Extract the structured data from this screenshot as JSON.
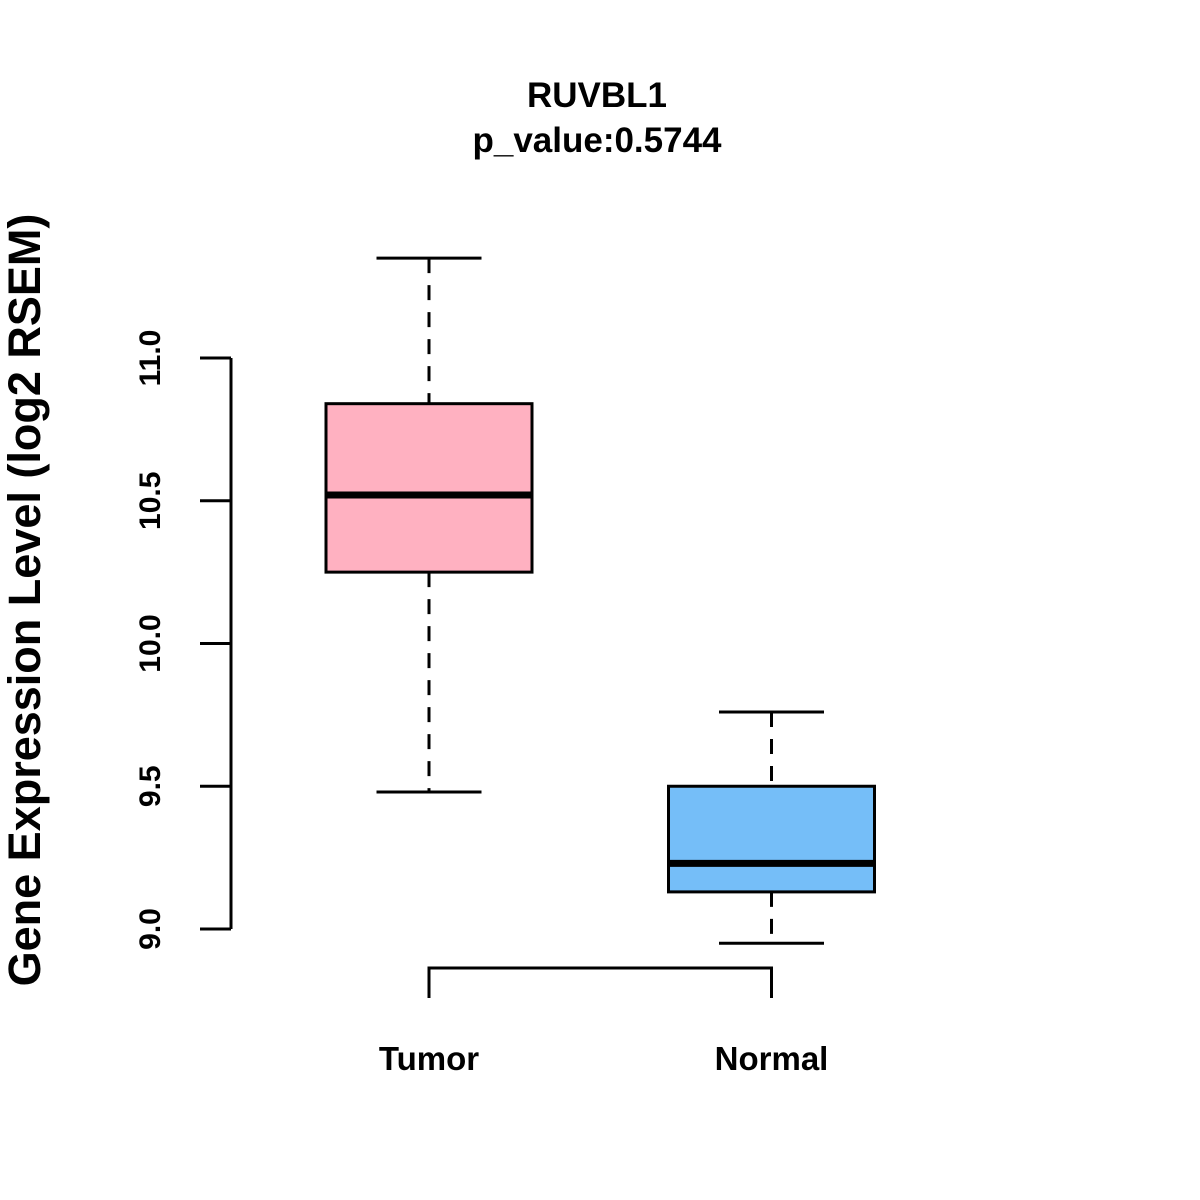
{
  "title": {
    "line1": "RUVBL1",
    "line2": "p_value:0.5744"
  },
  "y_axis": {
    "label": "Gene Expression Level (log2 RSEM)",
    "tick_labels": [
      "9.0",
      "9.5",
      "10.0",
      "10.5",
      "11.0"
    ]
  },
  "x_axis": {
    "categories": [
      "Tumor",
      "Normal"
    ]
  },
  "colors": {
    "tumor_fill": "#FFB1C1",
    "normal_fill": "#75BEF8",
    "stroke": "#000000",
    "background": "#FFFFFF"
  },
  "chart_data": {
    "type": "boxplot",
    "title": "RUVBL1",
    "subtitle": "p_value:0.5744",
    "xlabel": "",
    "ylabel": "Gene Expression Level (log2 RSEM)",
    "categories": [
      "Tumor",
      "Normal"
    ],
    "yticks": [
      9.0,
      9.5,
      10.0,
      10.5,
      11.0
    ],
    "ylim_shown": [
      9.0,
      11.0
    ],
    "grid": false,
    "legend": "none",
    "series": [
      {
        "name": "Tumor",
        "lower_whisker": 9.48,
        "q1": 10.25,
        "median": 10.52,
        "q3": 10.84,
        "upper_whisker": 11.35,
        "fill_color": "#FFB1C1"
      },
      {
        "name": "Normal",
        "lower_whisker": 8.95,
        "q1": 9.13,
        "median": 9.23,
        "q3": 9.5,
        "upper_whisker": 9.76,
        "fill_color": "#75BEF8"
      }
    ]
  }
}
